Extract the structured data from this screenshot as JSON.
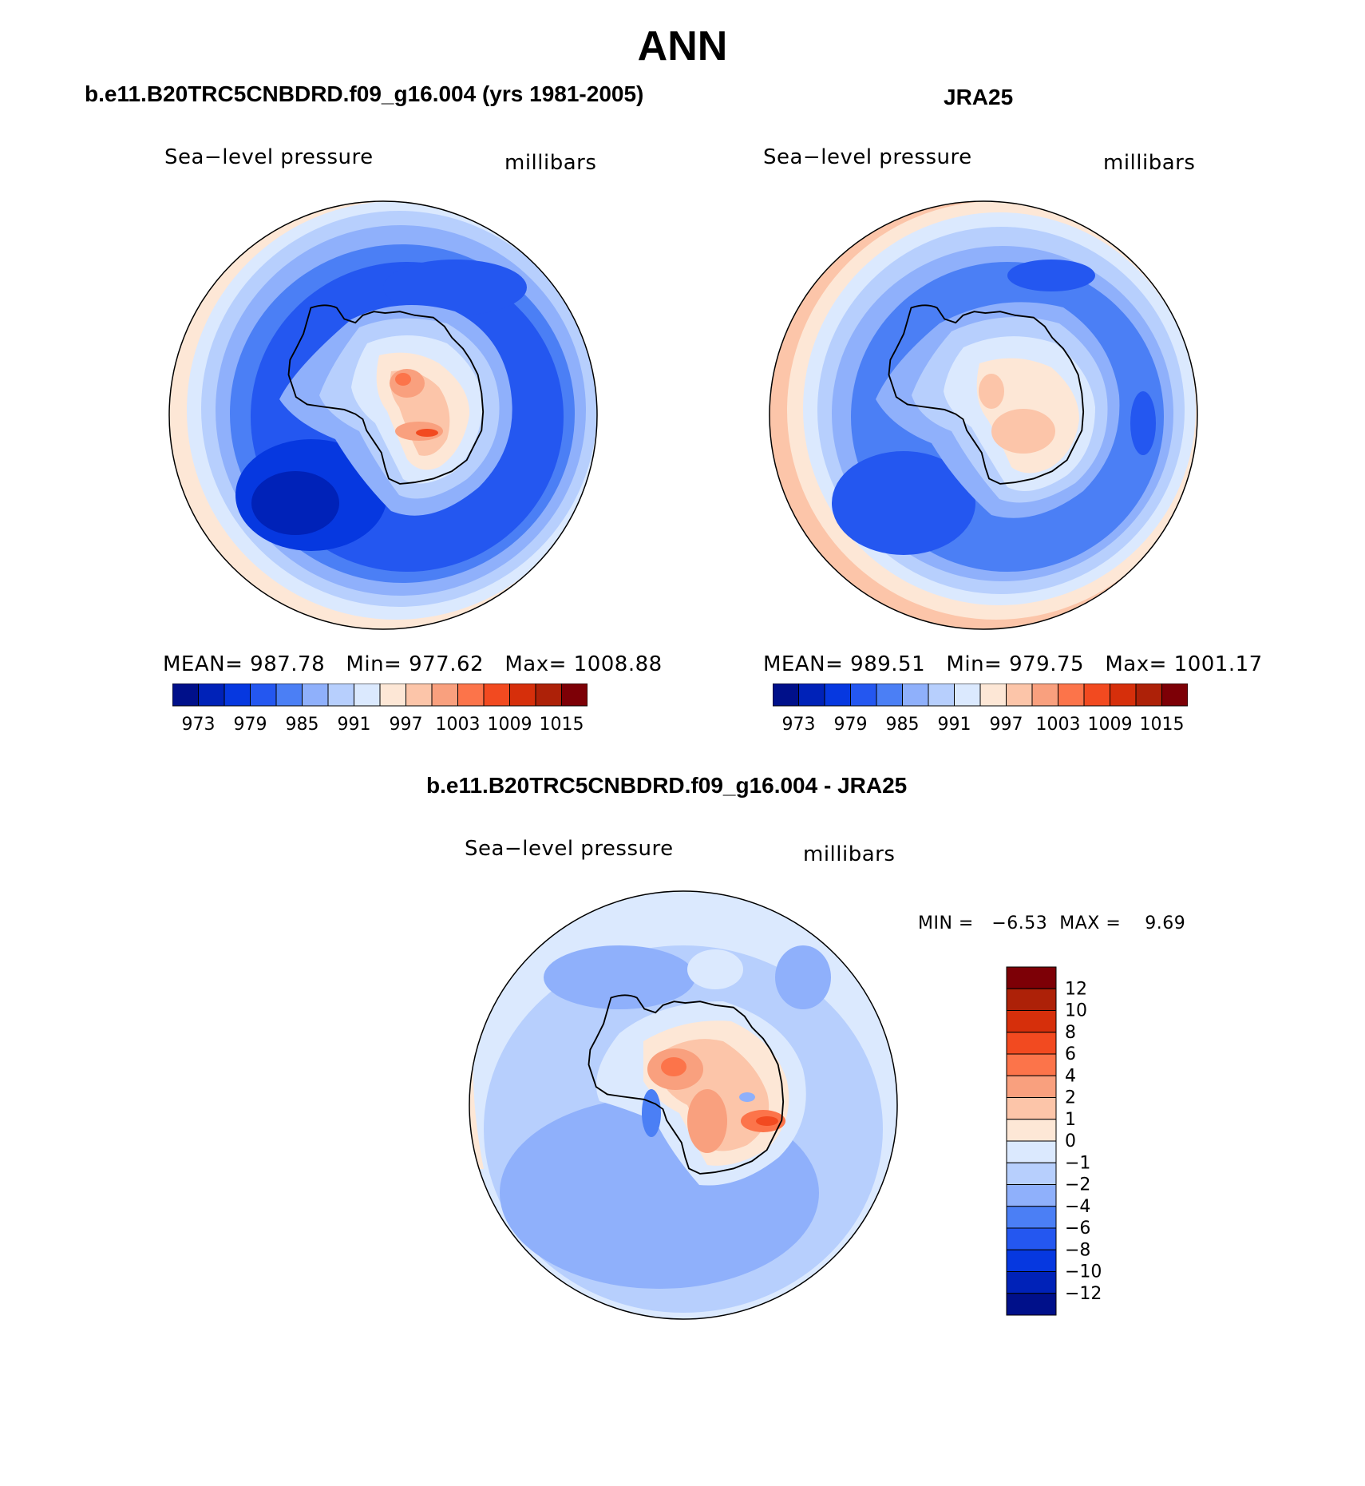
{
  "title": "ANN",
  "panels": [
    {
      "id": "model",
      "title": "b.e11.B20TRC5CNBDRD.f09_g16.004 (yrs 1981-2005)",
      "variable": "Sea−level pressure",
      "units": "millibars",
      "stats": {
        "mean": "987.78",
        "min": "977.62",
        "max": "1008.88"
      },
      "stats_text": "MEAN= 987.78   Min= 977.62   Max= 1008.88"
    },
    {
      "id": "obs",
      "title": "JRA25",
      "variable": "Sea−level pressure",
      "units": "millibars",
      "stats": {
        "mean": "989.51",
        "min": "979.75",
        "max": "1001.17"
      },
      "stats_text": "MEAN= 989.51   Min= 979.75   Max= 1001.17"
    },
    {
      "id": "diff",
      "title": "b.e11.B20TRC5CNBDRD.f09_g16.004 - JRA25",
      "variable": "Sea−level pressure",
      "units": "millibars",
      "stats": {
        "min": "−6.53",
        "max": "9.69"
      },
      "stats_text": "MIN =   −6.53  MAX =    9.69"
    }
  ],
  "colorbar_abs": {
    "colors": [
      "#00108a",
      "#0022b8",
      "#0638e0",
      "#2457f0",
      "#4b7ff5",
      "#8fb0fb",
      "#b7cffd",
      "#dbe9fe",
      "#fde7d6",
      "#fcc5a9",
      "#f9a07e",
      "#fc744a",
      "#f24a20",
      "#d62f0b",
      "#ad2108",
      "#7d0006"
    ],
    "labels": [
      "973",
      "979",
      "985",
      "991",
      "997",
      "1003",
      "1009",
      "1015"
    ]
  },
  "colorbar_diff": {
    "colors": [
      "#7d0006",
      "#ad2108",
      "#d62f0b",
      "#f24a20",
      "#fc744a",
      "#f9a07e",
      "#fcc5a9",
      "#fde7d6",
      "#dbe9fe",
      "#b7cffd",
      "#8fb0fb",
      "#4b7ff5",
      "#2457f0",
      "#0638e0",
      "#0022b8",
      "#00108a"
    ],
    "labels": [
      "12",
      "10",
      "8",
      "6",
      "4",
      "2",
      "1",
      "0",
      "−1",
      "−2",
      "−4",
      "−6",
      "−8",
      "−10",
      "−12"
    ]
  }
}
